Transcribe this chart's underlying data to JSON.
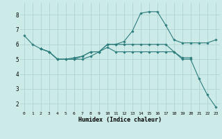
{
  "xlabel": "Humidex (Indice chaleur)",
  "background_color": "#cceae8",
  "line_color": "#2d7d7d",
  "grid_color": "#aed4d2",
  "xlim": [
    -0.5,
    23.5
  ],
  "ylim": [
    1.5,
    8.8
  ],
  "xticks": [
    0,
    1,
    2,
    3,
    4,
    5,
    6,
    7,
    8,
    9,
    10,
    11,
    12,
    13,
    14,
    15,
    16,
    17,
    18,
    19,
    20,
    21,
    22,
    23
  ],
  "yticks": [
    2,
    3,
    4,
    5,
    6,
    7,
    8
  ],
  "series": [
    {
      "x": [
        0,
        1,
        2,
        3,
        4,
        5,
        6,
        7,
        8,
        9,
        10,
        11,
        12,
        13,
        14,
        15,
        16,
        17,
        18,
        19,
        20,
        21,
        22,
        23
      ],
      "y": [
        6.6,
        6.0,
        5.7,
        5.5,
        5.0,
        5.0,
        5.0,
        5.2,
        5.5,
        5.5,
        6.0,
        6.0,
        6.2,
        6.9,
        8.1,
        8.2,
        8.2,
        7.3,
        6.3,
        6.1,
        6.1,
        6.1,
        6.1,
        6.3
      ]
    },
    {
      "x": [
        2,
        3,
        4,
        5,
        6,
        7,
        8,
        9,
        10,
        11,
        12,
        13,
        14,
        15,
        16,
        17,
        18,
        19,
        20
      ],
      "y": [
        5.7,
        5.5,
        5.0,
        5.0,
        5.1,
        5.2,
        5.5,
        5.5,
        5.8,
        5.5,
        5.5,
        5.5,
        5.5,
        5.5,
        5.5,
        5.5,
        5.5,
        5.1,
        5.1
      ]
    },
    {
      "x": [
        2,
        3,
        4,
        5,
        6,
        7,
        8,
        9,
        10,
        11,
        12,
        13,
        14,
        15,
        16,
        17,
        18,
        19,
        20,
        21,
        22,
        23
      ],
      "y": [
        5.7,
        5.5,
        5.0,
        5.0,
        5.0,
        5.0,
        5.2,
        5.5,
        6.0,
        6.0,
        6.0,
        6.0,
        6.0,
        6.0,
        6.0,
        6.0,
        5.5,
        5.0,
        5.0,
        3.7,
        2.6,
        1.8
      ]
    }
  ]
}
